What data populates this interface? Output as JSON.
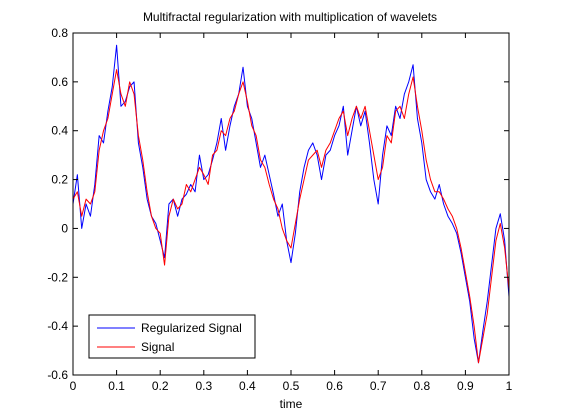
{
  "chart_data": {
    "type": "line",
    "title": "Multifractal regularization with multiplication of wavelets",
    "xlabel": "time",
    "ylabel": "",
    "xlim": [
      0,
      1
    ],
    "ylim": [
      -0.6,
      0.8
    ],
    "xticks": [
      0,
      0.1,
      0.2,
      0.3,
      0.4,
      0.5,
      0.6,
      0.7,
      0.8,
      0.9,
      1
    ],
    "yticks": [
      -0.6,
      -0.4,
      -0.2,
      0,
      0.2,
      0.4,
      0.6,
      0.8
    ],
    "xtick_labels": [
      "0",
      "0.1",
      "0.2",
      "0.3",
      "0.4",
      "0.5",
      "0.6",
      "0.7",
      "0.8",
      "0.9",
      "1"
    ],
    "ytick_labels": [
      "-0.6",
      "-0.4",
      "-0.2",
      "0",
      "0.2",
      "0.4",
      "0.6",
      "0.8"
    ],
    "grid": false,
    "legend_position": "bottom-left",
    "series": [
      {
        "name": "Regularized Signal",
        "color": "#0000ff",
        "x": [
          0,
          0.01,
          0.02,
          0.03,
          0.04,
          0.05,
          0.06,
          0.07,
          0.08,
          0.09,
          0.1,
          0.11,
          0.12,
          0.13,
          0.14,
          0.15,
          0.16,
          0.17,
          0.18,
          0.19,
          0.2,
          0.21,
          0.22,
          0.23,
          0.24,
          0.25,
          0.26,
          0.27,
          0.28,
          0.29,
          0.3,
          0.31,
          0.32,
          0.33,
          0.34,
          0.35,
          0.36,
          0.37,
          0.38,
          0.39,
          0.4,
          0.41,
          0.42,
          0.43,
          0.44,
          0.45,
          0.46,
          0.47,
          0.48,
          0.49,
          0.5,
          0.51,
          0.52,
          0.53,
          0.54,
          0.55,
          0.56,
          0.57,
          0.58,
          0.59,
          0.6,
          0.61,
          0.62,
          0.63,
          0.64,
          0.65,
          0.66,
          0.67,
          0.68,
          0.69,
          0.7,
          0.71,
          0.72,
          0.73,
          0.74,
          0.75,
          0.76,
          0.77,
          0.78,
          0.79,
          0.8,
          0.81,
          0.82,
          0.83,
          0.84,
          0.85,
          0.86,
          0.87,
          0.88,
          0.89,
          0.9,
          0.91,
          0.92,
          0.93,
          0.94,
          0.95,
          0.96,
          0.97,
          0.98,
          0.99,
          1
        ],
        "values": [
          0.1,
          0.22,
          0.0,
          0.1,
          0.05,
          0.18,
          0.38,
          0.35,
          0.48,
          0.58,
          0.75,
          0.5,
          0.52,
          0.58,
          0.6,
          0.35,
          0.25,
          0.12,
          0.05,
          0.02,
          -0.05,
          -0.12,
          0.1,
          0.12,
          0.05,
          0.12,
          0.14,
          0.18,
          0.15,
          0.3,
          0.2,
          0.22,
          0.28,
          0.35,
          0.45,
          0.32,
          0.42,
          0.5,
          0.55,
          0.66,
          0.5,
          0.45,
          0.35,
          0.25,
          0.3,
          0.22,
          0.14,
          0.05,
          0.1,
          -0.05,
          -0.14,
          -0.02,
          0.15,
          0.25,
          0.32,
          0.35,
          0.3,
          0.2,
          0.3,
          0.32,
          0.38,
          0.42,
          0.5,
          0.3,
          0.4,
          0.5,
          0.42,
          0.48,
          0.35,
          0.2,
          0.1,
          0.3,
          0.42,
          0.38,
          0.5,
          0.45,
          0.55,
          0.6,
          0.67,
          0.45,
          0.35,
          0.2,
          0.15,
          0.12,
          0.18,
          0.1,
          0.05,
          0.02,
          -0.02,
          -0.1,
          -0.2,
          -0.3,
          -0.45,
          -0.55,
          -0.42,
          -0.3,
          -0.15,
          0.0,
          0.06,
          -0.05,
          -0.28
        ]
      },
      {
        "name": "Signal",
        "color": "#ff0000",
        "x": [
          0,
          0.01,
          0.02,
          0.03,
          0.04,
          0.05,
          0.06,
          0.07,
          0.08,
          0.09,
          0.1,
          0.11,
          0.12,
          0.13,
          0.14,
          0.15,
          0.16,
          0.17,
          0.18,
          0.19,
          0.2,
          0.21,
          0.22,
          0.23,
          0.24,
          0.25,
          0.26,
          0.27,
          0.28,
          0.29,
          0.3,
          0.31,
          0.32,
          0.33,
          0.34,
          0.35,
          0.36,
          0.37,
          0.38,
          0.39,
          0.4,
          0.41,
          0.42,
          0.43,
          0.44,
          0.45,
          0.46,
          0.47,
          0.48,
          0.49,
          0.5,
          0.51,
          0.52,
          0.53,
          0.54,
          0.55,
          0.56,
          0.57,
          0.58,
          0.59,
          0.6,
          0.61,
          0.62,
          0.63,
          0.64,
          0.65,
          0.66,
          0.67,
          0.68,
          0.69,
          0.7,
          0.71,
          0.72,
          0.73,
          0.74,
          0.75,
          0.76,
          0.77,
          0.78,
          0.79,
          0.8,
          0.81,
          0.82,
          0.83,
          0.84,
          0.85,
          0.86,
          0.87,
          0.88,
          0.89,
          0.9,
          0.91,
          0.92,
          0.93,
          0.94,
          0.95,
          0.96,
          0.97,
          0.98,
          0.99,
          1
        ],
        "values": [
          0.12,
          0.15,
          0.05,
          0.12,
          0.1,
          0.15,
          0.32,
          0.4,
          0.45,
          0.55,
          0.65,
          0.55,
          0.5,
          0.6,
          0.55,
          0.38,
          0.28,
          0.15,
          0.05,
          0.0,
          -0.02,
          -0.15,
          0.05,
          0.12,
          0.08,
          0.1,
          0.18,
          0.15,
          0.2,
          0.25,
          0.22,
          0.18,
          0.3,
          0.32,
          0.4,
          0.38,
          0.45,
          0.48,
          0.55,
          0.6,
          0.52,
          0.42,
          0.38,
          0.28,
          0.25,
          0.18,
          0.12,
          0.08,
          0.0,
          -0.05,
          -0.08,
          0.02,
          0.12,
          0.2,
          0.28,
          0.3,
          0.32,
          0.25,
          0.32,
          0.35,
          0.4,
          0.45,
          0.48,
          0.38,
          0.45,
          0.5,
          0.45,
          0.5,
          0.4,
          0.3,
          0.2,
          0.25,
          0.38,
          0.35,
          0.48,
          0.5,
          0.45,
          0.55,
          0.62,
          0.5,
          0.4,
          0.28,
          0.2,
          0.15,
          0.15,
          0.12,
          0.08,
          0.05,
          0.0,
          -0.08,
          -0.18,
          -0.28,
          -0.4,
          -0.55,
          -0.45,
          -0.35,
          -0.2,
          -0.05,
          0.02,
          -0.08,
          -0.25
        ]
      }
    ]
  }
}
